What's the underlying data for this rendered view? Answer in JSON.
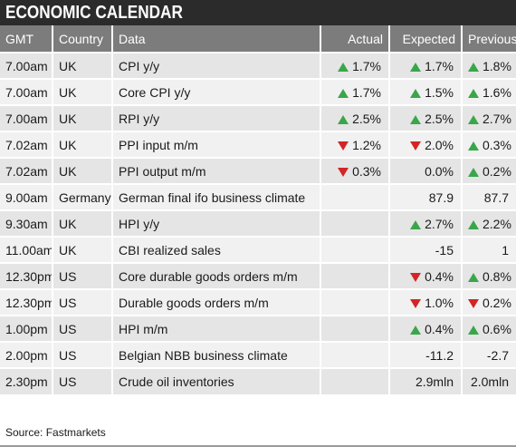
{
  "title": "ECONOMIC CALENDAR",
  "colors": {
    "title_bg": "#2b2b2b",
    "header_bg": "#7c7c7c",
    "up": "#3aa64a",
    "down": "#d32525"
  },
  "columns": [
    "GMT",
    "Country",
    "Data",
    "Actual",
    "Expected",
    "Previous"
  ],
  "rows": [
    {
      "gmt": "7.00am",
      "country": "UK",
      "data": "CPI y/y",
      "actual": "1.7%",
      "actual_dir": "up",
      "expected": "1.7%",
      "expected_dir": "up",
      "previous": "1.8%",
      "previous_dir": "up"
    },
    {
      "gmt": "7.00am",
      "country": "UK",
      "data": "Core CPI y/y",
      "actual": "1.7%",
      "actual_dir": "up",
      "expected": "1.5%",
      "expected_dir": "up",
      "previous": "1.6%",
      "previous_dir": "up"
    },
    {
      "gmt": "7.00am",
      "country": "UK",
      "data": "RPI y/y",
      "actual": "2.5%",
      "actual_dir": "up",
      "expected": "2.5%",
      "expected_dir": "up",
      "previous": "2.7%",
      "previous_dir": "up"
    },
    {
      "gmt": "7.02am",
      "country": "UK",
      "data": "PPI input m/m",
      "actual": "1.2%",
      "actual_dir": "down",
      "expected": "2.0%",
      "expected_dir": "down",
      "previous": "0.3%",
      "previous_dir": "up"
    },
    {
      "gmt": "7.02am",
      "country": "UK",
      "data": "PPI output m/m",
      "actual": "0.3%",
      "actual_dir": "down",
      "expected": "0.0%",
      "expected_dir": "",
      "previous": "0.2%",
      "previous_dir": "up"
    },
    {
      "gmt": "9.00am",
      "country": "Germany",
      "data": "German final ifo business climate",
      "actual": "",
      "actual_dir": "",
      "expected": "87.9",
      "expected_dir": "",
      "previous": "87.7",
      "previous_dir": ""
    },
    {
      "gmt": "9.30am",
      "country": "UK",
      "data": "HPI y/y",
      "actual": "",
      "actual_dir": "",
      "expected": "2.7%",
      "expected_dir": "up",
      "previous": "2.2%",
      "previous_dir": "up"
    },
    {
      "gmt": "11.00am",
      "country": "UK",
      "data": "CBI realized sales",
      "actual": "",
      "actual_dir": "",
      "expected": "-15",
      "expected_dir": "",
      "previous": "1",
      "previous_dir": ""
    },
    {
      "gmt": "12.30pm",
      "country": "US",
      "data": "Core durable goods orders m/m",
      "actual": "",
      "actual_dir": "",
      "expected": "0.4%",
      "expected_dir": "down",
      "previous": "0.8%",
      "previous_dir": "up"
    },
    {
      "gmt": "12.30pm",
      "country": "US",
      "data": "Durable goods orders m/m",
      "actual": "",
      "actual_dir": "",
      "expected": "1.0%",
      "expected_dir": "down",
      "previous": "0.2%",
      "previous_dir": "down"
    },
    {
      "gmt": "1.00pm",
      "country": "US",
      "data": "HPI m/m",
      "actual": "",
      "actual_dir": "",
      "expected": "0.4%",
      "expected_dir": "up",
      "previous": "0.6%",
      "previous_dir": "up"
    },
    {
      "gmt": "2.00pm",
      "country": "US",
      "data": "Belgian NBB business climate",
      "actual": "",
      "actual_dir": "",
      "expected": "-11.2",
      "expected_dir": "",
      "previous": "-2.7",
      "previous_dir": ""
    },
    {
      "gmt": "2.30pm",
      "country": "US",
      "data": "Crude oil inventories",
      "actual": "",
      "actual_dir": "",
      "expected": "2.9mln",
      "expected_dir": "",
      "previous": "2.0mln",
      "previous_dir": ""
    }
  ],
  "source": "Source: Fastmarkets"
}
